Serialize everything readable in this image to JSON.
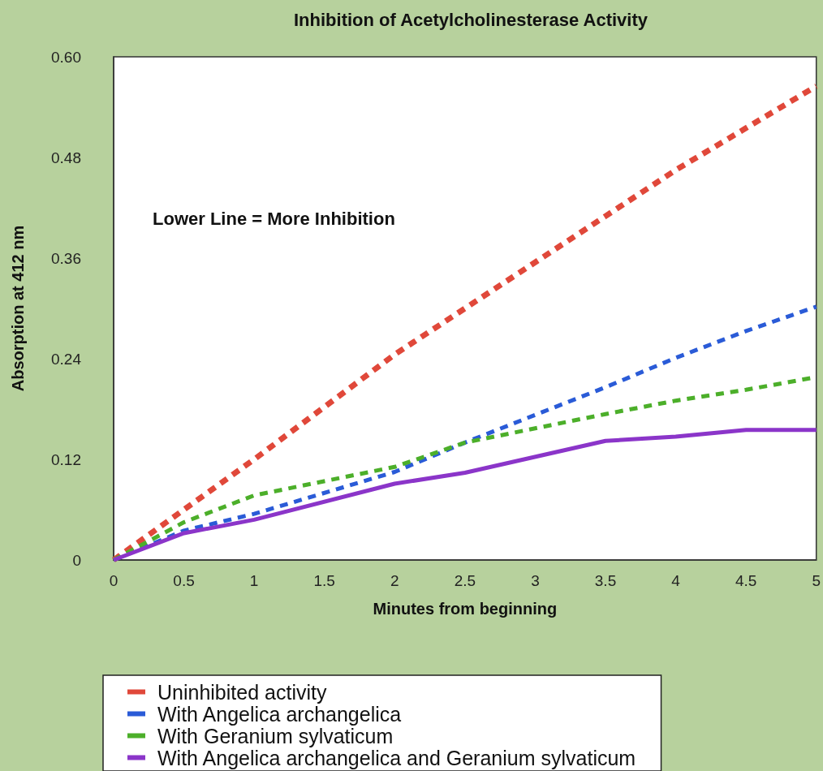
{
  "chart_data": {
    "type": "line",
    "title": "Inhibition of Acetylcholinesterase Activity",
    "xlabel": "Minutes from beginning",
    "ylabel": "Absorption at 412 nm",
    "annotations": [
      "Lower Line = More Inhibition"
    ],
    "x": [
      0,
      0.5,
      1,
      2,
      2.5,
      3.5,
      4,
      4.5,
      5
    ],
    "series": [
      {
        "name": "Uninhibited activity",
        "color": "#e0483a",
        "line_style": "dashed",
        "values": [
          0,
          0.06,
          0.12,
          0.245,
          0.3,
          0.41,
          0.465,
          0.515,
          0.565
        ]
      },
      {
        "name": "With Angelica archangelica",
        "color": "#2a5bd7",
        "line_style": "dashed",
        "values": [
          0,
          0.035,
          0.055,
          0.105,
          0.14,
          0.206,
          0.241,
          0.273,
          0.302
        ]
      },
      {
        "name": "With Geranium sylvaticum",
        "color": "#4caf2a",
        "line_style": "dashed",
        "values": [
          0,
          0.045,
          0.077,
          0.111,
          0.14,
          0.174,
          0.19,
          0.203,
          0.218
        ]
      },
      {
        "name": "With Angelica archangelica and Geranium sylvaticum",
        "color": "#8b35c9",
        "line_style": "solid",
        "values": [
          0,
          0.032,
          0.048,
          0.091,
          0.104,
          0.142,
          0.147,
          0.155,
          0.155
        ]
      }
    ],
    "xlim": [
      0,
      5
    ],
    "xticks": [
      0,
      0.5,
      1,
      1.5,
      2,
      2.5,
      3,
      3.5,
      4,
      4.5,
      5
    ],
    "ylim": [
      0,
      0.6
    ],
    "yticks": [
      0,
      0.12,
      0.24,
      0.36,
      0.48,
      {
        "value": 0.6,
        "label": "0.60"
      }
    ],
    "grid": false,
    "legend": "bottom",
    "marker": "none"
  }
}
